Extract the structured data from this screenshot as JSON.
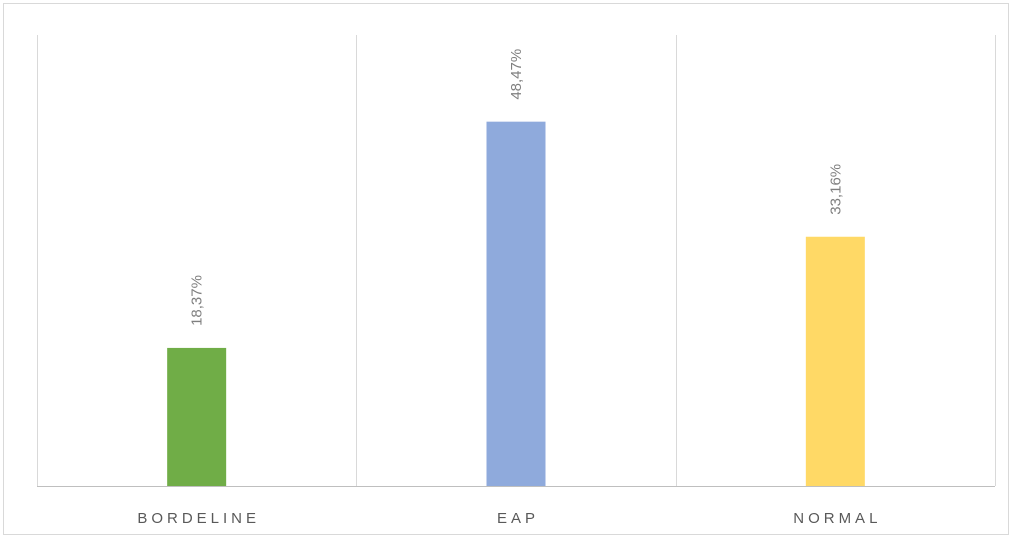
{
  "chart_data": {
    "type": "bar",
    "title": "",
    "xlabel": "",
    "ylabel": "",
    "categories": [
      "BORDELINE",
      "EAP",
      "NORMAL"
    ],
    "values": [
      18.37,
      48.47,
      33.16
    ],
    "data_labels": [
      "18,37%",
      "48,47%",
      "33,16%"
    ],
    "colors": [
      "#70ad47",
      "#8faadc",
      "#ffd966"
    ],
    "ylim": [
      0,
      60
    ],
    "grid": "vertical separators between categories",
    "legend": "none",
    "data_label_orientation": "vertical"
  }
}
